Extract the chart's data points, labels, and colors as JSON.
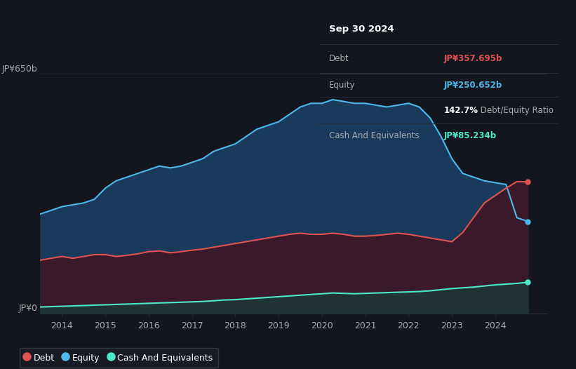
{
  "background_color": "#13161e",
  "plot_bg_color": "#13161e",
  "tooltip_box": {
    "date": "Sep 30 2024",
    "debt_label": "Debt",
    "debt_value": "JP¥357.695b",
    "equity_label": "Equity",
    "equity_value": "JP¥250.652b",
    "ratio_bold": "142.7%",
    "ratio_text": " Debt/Equity Ratio",
    "cash_label": "Cash And Equivalents",
    "cash_value": "JP¥85.234b"
  },
  "ylabel_top": "JP¥650b",
  "ylabel_bottom": "JP¥0",
  "x_ticks": [
    "2014",
    "2015",
    "2016",
    "2017",
    "2018",
    "2019",
    "2020",
    "2021",
    "2022",
    "2023",
    "2024"
  ],
  "legend_labels": [
    "Debt",
    "Equity",
    "Cash And Equivalents"
  ],
  "debt_color": "#e05252",
  "equity_color": "#4db8e8",
  "cash_color": "#4de8c8",
  "equity_fill_color": "#1a3a5c",
  "debt_fill_color": "#3a1a2a",
  "cash_fill_color": "#1a3a38",
  "grid_color": "#2a2d3a",
  "text_color": "#aaaaaa",
  "ylim": [
    0,
    720
  ],
  "xlim": [
    2013.5,
    2025.2
  ],
  "years_float": [
    2013.5,
    2014.0,
    2014.25,
    2014.5,
    2014.75,
    2015.0,
    2015.25,
    2015.5,
    2015.75,
    2016.0,
    2016.25,
    2016.5,
    2016.75,
    2017.0,
    2017.25,
    2017.5,
    2017.75,
    2018.0,
    2018.25,
    2018.5,
    2018.75,
    2019.0,
    2019.25,
    2019.5,
    2019.75,
    2020.0,
    2020.25,
    2020.5,
    2020.75,
    2021.0,
    2021.25,
    2021.5,
    2021.75,
    2022.0,
    2022.25,
    2022.5,
    2022.75,
    2023.0,
    2023.25,
    2023.5,
    2023.75,
    2024.0,
    2024.25,
    2024.5,
    2024.75
  ],
  "equity_data": [
    270,
    290,
    295,
    300,
    310,
    340,
    360,
    370,
    380,
    390,
    400,
    395,
    400,
    410,
    420,
    440,
    450,
    460,
    480,
    500,
    510,
    520,
    540,
    560,
    570,
    570,
    580,
    575,
    570,
    570,
    565,
    560,
    565,
    570,
    560,
    530,
    480,
    420,
    380,
    370,
    360,
    355,
    350,
    260,
    250
  ],
  "debt_data": [
    145,
    155,
    150,
    155,
    160,
    160,
    155,
    158,
    162,
    168,
    170,
    165,
    168,
    172,
    175,
    180,
    185,
    190,
    195,
    200,
    205,
    210,
    215,
    218,
    215,
    215,
    218,
    215,
    210,
    210,
    212,
    215,
    218,
    215,
    210,
    205,
    200,
    195,
    220,
    260,
    300,
    320,
    340,
    358,
    357
  ],
  "cash_data": [
    18,
    20,
    21,
    22,
    23,
    24,
    25,
    26,
    27,
    28,
    29,
    30,
    31,
    32,
    33,
    35,
    37,
    38,
    40,
    42,
    44,
    46,
    48,
    50,
    52,
    54,
    56,
    55,
    54,
    55,
    56,
    57,
    58,
    59,
    60,
    62,
    65,
    68,
    70,
    72,
    75,
    78,
    80,
    82,
    85
  ]
}
